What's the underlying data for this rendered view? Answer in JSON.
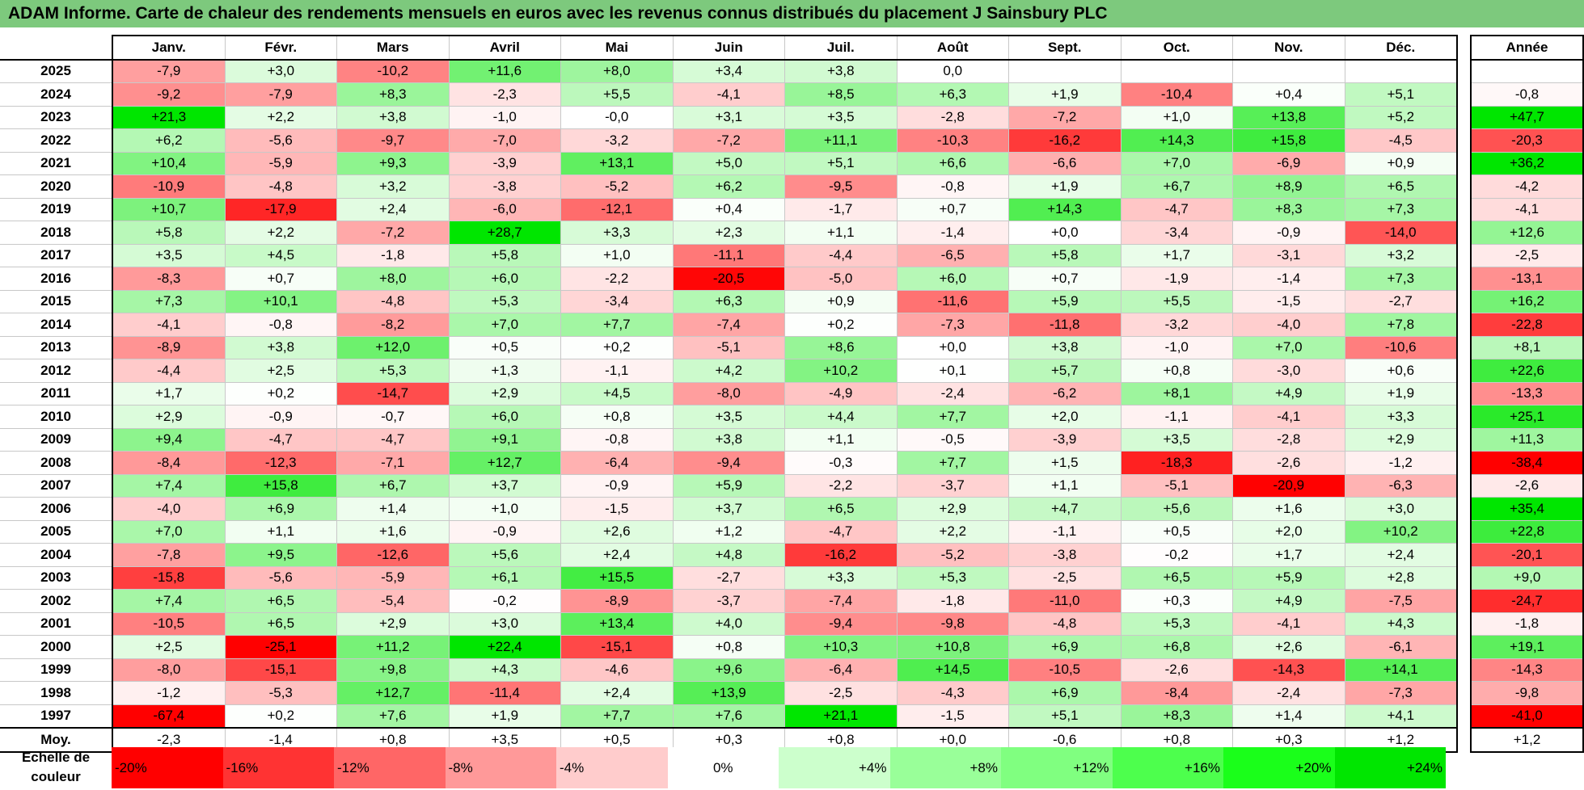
{
  "title": "ADAM Informe. Carte de chaleur des rendements mensuels en euros avec les revenus connus distribués du placement J Sainsbury PLC",
  "chart_data": {
    "type": "heatmap",
    "months": [
      "Janv.",
      "Févr.",
      "Mars",
      "Avril",
      "Mai",
      "Juin",
      "Juil.",
      "Août",
      "Sept.",
      "Oct.",
      "Nov.",
      "Déc."
    ],
    "year_header": "Année",
    "avg_label": "Moy.",
    "rows": [
      {
        "year": "2025",
        "values": [
          "-7,9",
          "+3,0",
          "-10,2",
          "+11,6",
          "+8,0",
          "+3,4",
          "+3,8",
          "0,0",
          "",
          "",
          "",
          ""
        ],
        "annual": ""
      },
      {
        "year": "2024",
        "values": [
          "-9,2",
          "-7,9",
          "+8,3",
          "-2,3",
          "+5,5",
          "-4,1",
          "+8,5",
          "+6,3",
          "+1,9",
          "-10,4",
          "+0,4",
          "+5,1"
        ],
        "annual": "-0,8"
      },
      {
        "year": "2023",
        "values": [
          "+21,3",
          "+2,2",
          "+3,8",
          "-1,0",
          "-0,0",
          "+3,1",
          "+3,5",
          "-2,8",
          "-7,2",
          "+1,0",
          "+13,8",
          "+5,2"
        ],
        "annual": "+47,7"
      },
      {
        "year": "2022",
        "values": [
          "+6,2",
          "-5,6",
          "-9,7",
          "-7,0",
          "-3,2",
          "-7,2",
          "+11,1",
          "-10,3",
          "-16,2",
          "+14,3",
          "+15,8",
          "-4,5"
        ],
        "annual": "-20,3"
      },
      {
        "year": "2021",
        "values": [
          "+10,4",
          "-5,9",
          "+9,3",
          "-3,9",
          "+13,1",
          "+5,0",
          "+5,1",
          "+6,6",
          "-6,6",
          "+7,0",
          "-6,9",
          "+0,9"
        ],
        "annual": "+36,2"
      },
      {
        "year": "2020",
        "values": [
          "-10,9",
          "-4,8",
          "+3,2",
          "-3,8",
          "-5,2",
          "+6,2",
          "-9,5",
          "-0,8",
          "+1,9",
          "+6,7",
          "+8,9",
          "+6,5"
        ],
        "annual": "-4,2"
      },
      {
        "year": "2019",
        "values": [
          "+10,7",
          "-17,9",
          "+2,4",
          "-6,0",
          "-12,1",
          "+0,4",
          "-1,7",
          "+0,7",
          "+14,3",
          "-4,7",
          "+8,3",
          "+7,3"
        ],
        "annual": "-4,1"
      },
      {
        "year": "2018",
        "values": [
          "+5,8",
          "+2,2",
          "-7,2",
          "+28,7",
          "+3,3",
          "+2,3",
          "+1,1",
          "-1,4",
          "+0,0",
          "-3,4",
          "-0,9",
          "-14,0"
        ],
        "annual": "+12,6"
      },
      {
        "year": "2017",
        "values": [
          "+3,5",
          "+4,5",
          "-1,8",
          "+5,8",
          "+1,0",
          "-11,1",
          "-4,4",
          "-6,5",
          "+5,8",
          "+1,7",
          "-3,1",
          "+3,2"
        ],
        "annual": "-2,5"
      },
      {
        "year": "2016",
        "values": [
          "-8,3",
          "+0,7",
          "+8,0",
          "+6,0",
          "-2,2",
          "-20,5",
          "-5,0",
          "+6,0",
          "+0,7",
          "-1,9",
          "-1,4",
          "+7,3"
        ],
        "annual": "-13,1"
      },
      {
        "year": "2015",
        "values": [
          "+7,3",
          "+10,1",
          "-4,8",
          "+5,3",
          "-3,4",
          "+6,3",
          "+0,9",
          "-11,6",
          "+5,9",
          "+5,5",
          "-1,5",
          "-2,7"
        ],
        "annual": "+16,2"
      },
      {
        "year": "2014",
        "values": [
          "-4,1",
          "-0,8",
          "-8,2",
          "+7,0",
          "+7,7",
          "-7,4",
          "+0,2",
          "-7,3",
          "-11,8",
          "-3,2",
          "-4,0",
          "+7,8"
        ],
        "annual": "-22,8"
      },
      {
        "year": "2013",
        "values": [
          "-8,9",
          "+3,8",
          "+12,0",
          "+0,5",
          "+0,2",
          "-5,1",
          "+8,6",
          "+0,0",
          "+3,8",
          "-1,0",
          "+7,0",
          "-10,6"
        ],
        "annual": "+8,1"
      },
      {
        "year": "2012",
        "values": [
          "-4,4",
          "+2,5",
          "+5,3",
          "+1,3",
          "-1,1",
          "+4,2",
          "+10,2",
          "+0,1",
          "+5,7",
          "+0,8",
          "-3,0",
          "+0,6"
        ],
        "annual": "+22,6"
      },
      {
        "year": "2011",
        "values": [
          "+1,7",
          "+0,2",
          "-14,7",
          "+2,9",
          "+4,5",
          "-8,0",
          "-4,9",
          "-2,4",
          "-6,2",
          "+8,1",
          "+4,9",
          "+1,9"
        ],
        "annual": "-13,3"
      },
      {
        "year": "2010",
        "values": [
          "+2,9",
          "-0,9",
          "-0,7",
          "+6,0",
          "+0,8",
          "+3,5",
          "+4,4",
          "+7,7",
          "+2,0",
          "-1,1",
          "-4,1",
          "+3,3"
        ],
        "annual": "+25,1"
      },
      {
        "year": "2009",
        "values": [
          "+9,4",
          "-4,7",
          "-4,7",
          "+9,1",
          "-0,8",
          "+3,8",
          "+1,1",
          "-0,5",
          "-3,9",
          "+3,5",
          "-2,8",
          "+2,9"
        ],
        "annual": "+11,3"
      },
      {
        "year": "2008",
        "values": [
          "-8,4",
          "-12,3",
          "-7,1",
          "+12,7",
          "-6,4",
          "-9,4",
          "-0,3",
          "+7,7",
          "+1,5",
          "-18,3",
          "-2,6",
          "-1,2"
        ],
        "annual": "-38,4"
      },
      {
        "year": "2007",
        "values": [
          "+7,4",
          "+15,8",
          "+6,7",
          "+3,7",
          "-0,9",
          "+5,9",
          "-2,2",
          "-3,7",
          "+1,1",
          "-5,1",
          "-20,9",
          "-6,3"
        ],
        "annual": "-2,6"
      },
      {
        "year": "2006",
        "values": [
          "-4,0",
          "+6,9",
          "+1,4",
          "+1,0",
          "-1,5",
          "+3,7",
          "+6,5",
          "+2,9",
          "+4,7",
          "+5,6",
          "+1,6",
          "+3,0"
        ],
        "annual": "+35,4"
      },
      {
        "year": "2005",
        "values": [
          "+7,0",
          "+1,1",
          "+1,6",
          "-0,9",
          "+2,6",
          "+1,2",
          "-4,7",
          "+2,2",
          "-1,1",
          "+0,5",
          "+2,0",
          "+10,2"
        ],
        "annual": "+22,8"
      },
      {
        "year": "2004",
        "values": [
          "-7,8",
          "+9,5",
          "-12,6",
          "+5,6",
          "+2,4",
          "+4,8",
          "-16,2",
          "-5,2",
          "-3,8",
          "-0,2",
          "+1,7",
          "+2,4"
        ],
        "annual": "-20,1"
      },
      {
        "year": "2003",
        "values": [
          "-15,8",
          "-5,6",
          "-5,9",
          "+6,1",
          "+15,5",
          "-2,7",
          "+3,3",
          "+5,3",
          "-2,5",
          "+6,5",
          "+5,9",
          "+2,8"
        ],
        "annual": "+9,0"
      },
      {
        "year": "2002",
        "values": [
          "+7,4",
          "+6,5",
          "-5,4",
          "-0,2",
          "-8,9",
          "-3,7",
          "-7,4",
          "-1,8",
          "-11,0",
          "+0,3",
          "+4,9",
          "-7,5"
        ],
        "annual": "-24,7"
      },
      {
        "year": "2001",
        "values": [
          "-10,5",
          "+6,5",
          "+2,9",
          "+3,0",
          "+13,4",
          "+4,0",
          "-9,4",
          "-9,8",
          "-4,8",
          "+5,3",
          "-4,1",
          "+4,3"
        ],
        "annual": "-1,8"
      },
      {
        "year": "2000",
        "values": [
          "+2,5",
          "-25,1",
          "+11,2",
          "+22,4",
          "-15,1",
          "+0,8",
          "+10,3",
          "+10,8",
          "+6,9",
          "+6,8",
          "+2,6",
          "-6,1"
        ],
        "annual": "+19,1"
      },
      {
        "year": "1999",
        "values": [
          "-8,0",
          "-15,1",
          "+9,8",
          "+4,3",
          "-4,6",
          "+9,6",
          "-6,4",
          "+14,5",
          "-10,5",
          "-2,6",
          "-14,3",
          "+14,1"
        ],
        "annual": "-14,3"
      },
      {
        "year": "1998",
        "values": [
          "-1,2",
          "-5,3",
          "+12,7",
          "-11,4",
          "+2,4",
          "+13,9",
          "-2,5",
          "-4,3",
          "+6,9",
          "-8,4",
          "-2,4",
          "-7,3"
        ],
        "annual": "-9,8"
      },
      {
        "year": "1997",
        "values": [
          "-67,4",
          "+0,2",
          "+7,6",
          "+1,9",
          "+7,7",
          "+7,6",
          "+21,1",
          "-1,5",
          "+5,1",
          "+8,3",
          "+1,4",
          "+4,1"
        ],
        "annual": "-41,0"
      }
    ],
    "averages": {
      "values": [
        "-2,3",
        "-1,4",
        "+0,8",
        "+3,5",
        "+0,5",
        "+0,3",
        "+0,8",
        "+0,0",
        "-0,6",
        "+0,8",
        "+0,3",
        "+1,2"
      ],
      "annual": "+1,2"
    },
    "legend": {
      "label": "Echelle de couleur",
      "steps": [
        "-20%",
        "-16%",
        "-12%",
        "-8%",
        "-4%",
        "0%",
        "+4%",
        "+8%",
        "+12%",
        "+16%",
        "+20%",
        "+24%"
      ],
      "colors": [
        "#ff0000",
        "#ff3333",
        "#ff6666",
        "#ff9999",
        "#ffcccc",
        "#ffffff",
        "#ccffcc",
        "#99ff99",
        "#80ff80",
        "#4dff4d",
        "#1aff1a",
        "#00e600"
      ]
    },
    "color_scale": {
      "negative": "#ff0000",
      "zero": "#ffffff",
      "positive": "#00e600"
    }
  }
}
